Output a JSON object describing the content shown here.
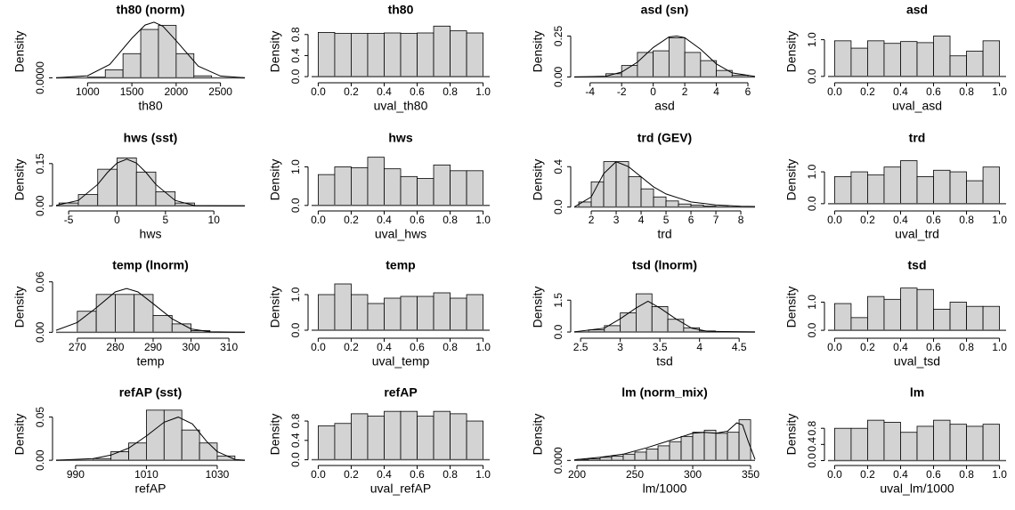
{
  "chart_data": [
    {
      "type": "histogram",
      "title": "th80 (norm)",
      "xlabel": "th80",
      "ylabel": "Density",
      "color": "#d3d3d3",
      "bins": [
        1000,
        1200,
        1400,
        1600,
        1800,
        2000,
        2200,
        2400
      ],
      "values": [
        2e-05,
        0.0002,
        0.0006,
        0.0012,
        0.0013,
        0.0006,
        5e-05
      ],
      "xlim": [
        645,
        2775
      ],
      "ylim": [
        -0.0001,
        0.0014
      ],
      "xticks": [
        1000,
        1500,
        2000,
        2500
      ],
      "yticks": [
        {
          "value": 0,
          "label": "0.0000"
        }
      ],
      "curve": {
        "x": [
          645,
          1000,
          1250,
          1500,
          1650,
          1750,
          1850,
          2000,
          2250,
          2500,
          2775
        ],
        "y": [
          1e-06,
          5.3e-05,
          0.00033,
          0.00098,
          0.00131,
          0.00138,
          0.00128,
          0.00092,
          0.00029,
          4.5e-05,
          2e-06
        ]
      }
    },
    {
      "type": "histogram",
      "title": "th80",
      "xlabel": "uval_th80",
      "ylabel": "Density",
      "color": "#d3d3d3",
      "bins": [
        0,
        0.1,
        0.2,
        0.3,
        0.4,
        0.5,
        0.6,
        0.7,
        0.8,
        0.9,
        1
      ],
      "values": [
        0.84,
        0.82,
        0.82,
        0.82,
        0.83,
        0.82,
        0.83,
        0.96,
        0.87,
        0.83
      ],
      "xlim": [
        -0.04,
        1.04
      ],
      "ylim": [
        -0.1,
        1.05
      ],
      "xticks": [
        {
          "value": 0,
          "label": "0.0"
        },
        0.2,
        0.4,
        0.6,
        0.8,
        {
          "value": 1,
          "label": "1.0"
        }
      ],
      "yticks": [
        {
          "value": 0,
          "label": "0.0"
        },
        0.4,
        0.8
      ]
    },
    {
      "type": "histogram",
      "title": "asd (sn)",
      "xlabel": "asd",
      "ylabel": "Density",
      "color": "#d3d3d3",
      "bins": [
        -3,
        -2,
        -1,
        0,
        1,
        2,
        3,
        4,
        5,
        6
      ],
      "values": [
        0.02,
        0.07,
        0.15,
        0.16,
        0.24,
        0.15,
        0.1,
        0.04,
        0.01
      ],
      "xlim": [
        -5,
        6.45
      ],
      "ylim": [
        -0.03,
        0.34
      ],
      "xticks": [
        -4,
        -2,
        0,
        2,
        4,
        6
      ],
      "yticks": [
        {
          "value": 0,
          "label": "0.00"
        },
        0.25
      ],
      "curve": {
        "x": [
          -5,
          -3,
          -2,
          -1,
          0,
          1,
          1.5,
          2,
          3,
          4,
          5,
          6.45
        ],
        "y": [
          0,
          0.005,
          0.03,
          0.09,
          0.18,
          0.245,
          0.25,
          0.24,
          0.17,
          0.08,
          0.025,
          0.003
        ]
      }
    },
    {
      "type": "histogram",
      "title": "asd",
      "xlabel": "uval_asd",
      "ylabel": "Density",
      "color": "#d3d3d3",
      "bins": [
        0,
        0.1,
        0.2,
        0.3,
        0.4,
        0.5,
        0.6,
        0.7,
        0.8,
        0.9,
        1
      ],
      "values": [
        0.97,
        0.77,
        0.97,
        0.9,
        0.95,
        0.92,
        1.1,
        0.56,
        0.69,
        0.97
      ],
      "xlim": [
        -0.04,
        1.04
      ],
      "ylim": [
        -0.15,
        1.5
      ],
      "xticks": [
        {
          "value": 0,
          "label": "0.0"
        },
        0.2,
        0.4,
        0.6,
        0.8,
        {
          "value": 1,
          "label": "1.0"
        }
      ],
      "yticks": [
        {
          "value": 0,
          "label": "0.0"
        },
        {
          "value": 1,
          "label": "1.0"
        }
      ]
    },
    {
      "type": "histogram",
      "title": "hws (sst)",
      "xlabel": "hws",
      "ylabel": "Density",
      "color": "#d3d3d3",
      "bins": [
        -6,
        -4,
        -2,
        0,
        2,
        4,
        6,
        8
      ],
      "values": [
        0.01,
        0.04,
        0.13,
        0.17,
        0.12,
        0.05,
        0.01
      ],
      "xlim": [
        -6.3,
        13.2
      ],
      "ylim": [
        -0.015,
        0.2
      ],
      "xticks": [
        -5,
        0,
        5,
        10
      ],
      "yticks": [
        {
          "value": 0,
          "label": "0.00"
        },
        0.15
      ],
      "curve": {
        "x": [
          -6.3,
          -4,
          -2,
          -1,
          0,
          1,
          2,
          3,
          4,
          6,
          8,
          13.2
        ],
        "y": [
          0.0017,
          0.019,
          0.076,
          0.118,
          0.152,
          0.166,
          0.152,
          0.118,
          0.076,
          0.019,
          0.0007,
          0
        ]
      }
    },
    {
      "type": "histogram",
      "title": "hws",
      "xlabel": "uval_hws",
      "ylabel": "Density",
      "color": "#d3d3d3",
      "bins": [
        0,
        0.1,
        0.2,
        0.3,
        0.4,
        0.5,
        0.6,
        0.7,
        0.8,
        0.9,
        1
      ],
      "values": [
        0.8,
        1.0,
        0.98,
        1.25,
        0.95,
        0.75,
        0.7,
        1.05,
        0.9,
        0.9
      ],
      "xlim": [
        -0.04,
        1.04
      ],
      "ylim": [
        -0.12,
        1.45
      ],
      "xticks": [
        {
          "value": 0,
          "label": "0.0"
        },
        0.2,
        0.4,
        0.6,
        0.8,
        {
          "value": 1,
          "label": "1.0"
        }
      ],
      "yticks": [
        {
          "value": 0,
          "label": "0.0"
        },
        {
          "value": 1,
          "label": "1.0"
        }
      ]
    },
    {
      "type": "histogram",
      "title": "trd (GEV)",
      "xlabel": "trd",
      "ylabel": "Density",
      "color": "#d3d3d3",
      "bins": [
        1.5,
        2,
        2.5,
        3,
        3.5,
        4,
        4.5,
        5,
        5.5,
        6,
        6.5,
        7,
        7.5
      ],
      "values": [
        0.05,
        0.25,
        0.45,
        0.45,
        0.3,
        0.18,
        0.1,
        0.06,
        0.03,
        0.02,
        0.01,
        0.005
      ],
      "xlim": [
        1.32,
        8.57
      ],
      "ylim": [
        -0.03,
        0.57
      ],
      "xticks": [
        2,
        3,
        4,
        5,
        6,
        7,
        8
      ],
      "yticks": [
        {
          "value": 0,
          "label": "0.0"
        },
        0.4
      ],
      "curve": {
        "x": [
          1.32,
          2,
          2.5,
          3,
          3.5,
          4,
          4.5,
          5,
          6,
          7,
          8,
          8.57
        ],
        "y": [
          0,
          0.1,
          0.33,
          0.45,
          0.4,
          0.3,
          0.2,
          0.13,
          0.05,
          0.02,
          0.008,
          0.005
        ]
      }
    },
    {
      "type": "histogram",
      "title": "trd",
      "xlabel": "uval_trd",
      "ylabel": "Density",
      "color": "#d3d3d3",
      "bins": [
        0,
        0.1,
        0.2,
        0.3,
        0.4,
        0.5,
        0.6,
        0.7,
        0.8,
        0.9,
        1
      ],
      "values": [
        0.85,
        1.0,
        0.9,
        1.15,
        1.35,
        0.85,
        1.05,
        1.0,
        0.72,
        1.15
      ],
      "xlim": [
        -0.04,
        1.04
      ],
      "ylim": [
        -0.2,
        1.7
      ],
      "xticks": [
        {
          "value": 0,
          "label": "0.0"
        },
        0.2,
        0.4,
        0.6,
        0.8,
        {
          "value": 1,
          "label": "1.0"
        }
      ],
      "yticks": [
        {
          "value": 0,
          "label": "0.0"
        },
        {
          "value": 1,
          "label": "1.0"
        }
      ]
    },
    {
      "type": "histogram",
      "title": "temp (lnorm)",
      "xlabel": "temp",
      "ylabel": "Density",
      "color": "#d3d3d3",
      "bins": [
        270,
        275,
        280,
        285,
        290,
        295,
        300,
        305
      ],
      "values": [
        0.025,
        0.045,
        0.045,
        0.045,
        0.02,
        0.01,
        0.002
      ],
      "xlim": [
        264.4,
        314.2
      ],
      "ylim": [
        -0.006,
        0.066
      ],
      "xticks": [
        270,
        280,
        290,
        300,
        310
      ],
      "yticks": [
        {
          "value": 0,
          "label": "0.00"
        },
        0.06
      ],
      "curve": {
        "x": [
          264.4,
          270,
          275,
          280,
          283,
          286,
          290,
          295,
          300,
          305,
          314.2
        ],
        "y": [
          0.0024,
          0.0117,
          0.029,
          0.048,
          0.052,
          0.048,
          0.034,
          0.016,
          0.004,
          0.0007,
          0
        ]
      }
    },
    {
      "type": "histogram",
      "title": "temp",
      "xlabel": "uval_temp",
      "ylabel": "Density",
      "color": "#d3d3d3",
      "bins": [
        0,
        0.1,
        0.2,
        0.3,
        0.4,
        0.5,
        0.6,
        0.7,
        0.8,
        0.9,
        1
      ],
      "values": [
        1.0,
        1.3,
        1.0,
        0.75,
        0.9,
        0.95,
        0.95,
        1.05,
        0.9,
        1.0
      ],
      "xlim": [
        -0.04,
        1.04
      ],
      "ylim": [
        -0.2,
        1.5
      ],
      "xticks": [
        {
          "value": 0,
          "label": "0.0"
        },
        0.2,
        0.4,
        0.6,
        0.8,
        {
          "value": 1,
          "label": "1.0"
        }
      ],
      "yticks": [
        {
          "value": 0,
          "label": "0.0"
        },
        {
          "value": 1,
          "label": "1.0"
        }
      ]
    },
    {
      "type": "histogram",
      "title": "tsd (lnorm)",
      "xlabel": "tsd",
      "ylabel": "Density",
      "color": "#d3d3d3",
      "bins": [
        2.6,
        2.8,
        3.0,
        3.2,
        3.4,
        3.6,
        3.8,
        4.0,
        4.2
      ],
      "values": [
        0.1,
        0.3,
        0.9,
        1.8,
        1.2,
        0.6,
        0.2,
        0.05
      ],
      "xlim": [
        2.42,
        4.7
      ],
      "ylim": [
        -0.25,
        2.6
      ],
      "xticks": [
        2.5,
        3,
        3.5,
        4,
        4.5
      ],
      "yticks": [
        {
          "value": 0,
          "label": "0.0"
        },
        1.5
      ],
      "curve": {
        "x": [
          2.42,
          2.8,
          3.0,
          3.2,
          3.35,
          3.5,
          3.7,
          3.9,
          4.1,
          4.7
        ],
        "y": [
          0.0045,
          0.18,
          0.62,
          1.13,
          1.45,
          1.13,
          0.62,
          0.18,
          0.03,
          0
        ]
      }
    },
    {
      "type": "histogram",
      "title": "tsd",
      "xlabel": "uval_tsd",
      "ylabel": "Density",
      "color": "#d3d3d3",
      "bins": [
        0,
        0.1,
        0.2,
        0.3,
        0.4,
        0.5,
        0.6,
        0.7,
        0.8,
        0.9,
        1
      ],
      "values": [
        0.95,
        0.45,
        1.2,
        1.1,
        1.5,
        1.45,
        0.75,
        1.0,
        0.85,
        0.85
      ],
      "xlim": [
        -0.04,
        1.04
      ],
      "ylim": [
        -0.25,
        1.9
      ],
      "xticks": [
        {
          "value": 0,
          "label": "0.0"
        },
        0.2,
        0.4,
        0.6,
        0.8,
        {
          "value": 1,
          "label": "1.0"
        }
      ],
      "yticks": [
        {
          "value": 0,
          "label": "0.0"
        },
        {
          "value": 1,
          "label": "1.0"
        }
      ]
    },
    {
      "type": "histogram",
      "title": "refAP (sst)",
      "xlabel": "refAP",
      "ylabel": "Density",
      "color": "#d3d3d3",
      "bins": [
        995,
        1000,
        1005,
        1010,
        1015,
        1020,
        1025,
        1030,
        1035
      ],
      "values": [
        0.002,
        0.01,
        0.02,
        0.058,
        0.058,
        0.035,
        0.02,
        0.005
      ],
      "xlim": [
        984.5,
        1037.8
      ],
      "ylim": [
        -0.005,
        0.065
      ],
      "xticks": [
        990,
        1010,
        1030
      ],
      "yticks": [
        {
          "value": 0,
          "label": "0.00"
        },
        0.05
      ],
      "curve": {
        "x": [
          984.5,
          995,
          1000,
          1005,
          1010,
          1015,
          1019,
          1023,
          1027,
          1030,
          1035,
          1037.8
        ],
        "y": [
          0,
          0.002,
          0.006,
          0.014,
          0.028,
          0.044,
          0.05,
          0.042,
          0.022,
          0.01,
          0.001,
          0
        ]
      }
    },
    {
      "type": "histogram",
      "title": "refAP",
      "xlabel": "uval_refAP",
      "ylabel": "Density",
      "color": "#d3d3d3",
      "bins": [
        0,
        0.1,
        0.2,
        0.3,
        0.4,
        0.5,
        0.6,
        0.7,
        0.8,
        0.9,
        1
      ],
      "values": [
        0.7,
        0.75,
        0.95,
        0.9,
        1.0,
        1.0,
        0.9,
        1.0,
        0.95,
        0.8
      ],
      "xlim": [
        -0.04,
        1.04
      ],
      "ylim": [
        -0.1,
        1.15
      ],
      "xticks": [
        {
          "value": 0,
          "label": "0.0"
        },
        0.2,
        0.4,
        0.6,
        0.8,
        {
          "value": 1,
          "label": "1.0"
        }
      ],
      "yticks": [
        {
          "value": 0,
          "label": "0.0"
        },
        0.4,
        0.8
      ]
    },
    {
      "type": "histogram",
      "title": "lm (norm_mix)",
      "xlabel": "lm/1000",
      "ylabel": "Density",
      "color": "#d3d3d3",
      "bins": [
        200,
        210,
        220,
        230,
        240,
        250,
        260,
        270,
        280,
        290,
        300,
        310,
        320,
        330,
        340,
        350
      ],
      "values": [
        0.0005,
        0.0008,
        0.0015,
        0.002,
        0.003,
        0.004,
        0.0055,
        0.007,
        0.009,
        0.0115,
        0.0135,
        0.0145,
        0.013,
        0.0135,
        0.0195
      ],
      "xlim": [
        197.7,
        353.8
      ],
      "ylim": [
        -0.002,
        0.027
      ],
      "xticks": [
        200,
        250,
        300,
        350
      ],
      "yticks": [
        {
          "value": 0,
          "label": "0.000"
        }
      ],
      "curve": {
        "x": [
          197.7,
          220,
          240,
          260,
          280,
          300,
          310,
          320,
          330,
          338,
          343,
          348,
          353.8
        ],
        "y": [
          0.0003,
          0.0015,
          0.003,
          0.006,
          0.0095,
          0.013,
          0.0135,
          0.013,
          0.014,
          0.018,
          0.017,
          0.009,
          0.0005
        ]
      }
    },
    {
      "type": "histogram",
      "title": "lm",
      "xlabel": "uval_lm/1000",
      "ylabel": "Density",
      "color": "#d3d3d3",
      "bins": [
        0,
        0.1,
        0.2,
        0.3,
        0.4,
        0.5,
        0.6,
        0.7,
        0.8,
        0.9,
        1
      ],
      "values": [
        0.8,
        0.8,
        1.0,
        0.95,
        0.7,
        0.85,
        1.0,
        0.9,
        0.85,
        0.9
      ],
      "xlim": [
        -0.04,
        1.04
      ],
      "ylim": [
        -0.1,
        1.4
      ],
      "xticks": [
        {
          "value": 0,
          "label": "0.0"
        },
        0.2,
        0.4,
        0.6,
        0.8,
        {
          "value": 1,
          "label": "1.0"
        }
      ],
      "yticks": [
        {
          "value": 0,
          "label": "0.0"
        },
        0.4,
        0.8
      ]
    }
  ]
}
